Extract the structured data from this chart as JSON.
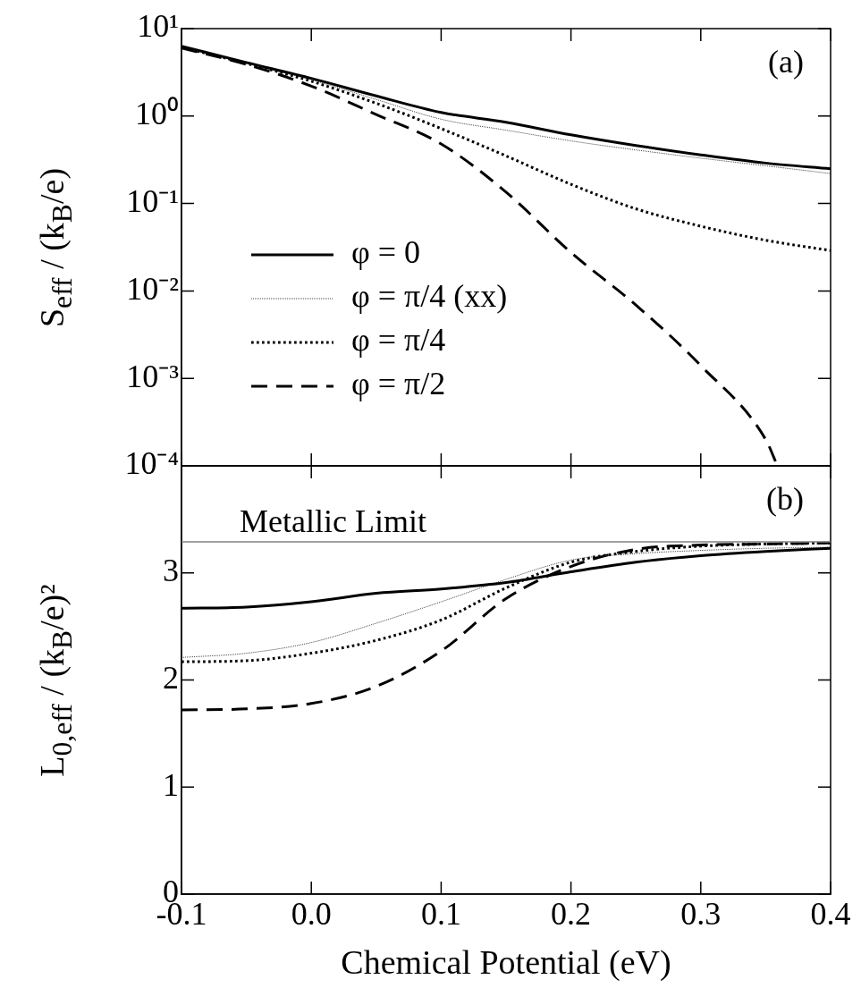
{
  "chart_data": [
    {
      "type": "line",
      "ylabel": "S$_{eff}$ / (k$_{B}$/e)",
      "log": true,
      "legend": "bottom left",
      "tick_labels": "y",
      "annotations": [
        "(a)"
      ],
      "xlim": [
        -0.1,
        0.4
      ],
      "xticks": [
        -0.1,
        0,
        0.1,
        0.2,
        0.3,
        0.4
      ],
      "ylim": [
        0.0001,
        10
      ],
      "yticks": [
        {
          "value": 10,
          "label": "10¹"
        },
        {
          "value": 1,
          "label": "10⁰"
        },
        {
          "value": 0.1,
          "label": "10⁻¹"
        },
        {
          "value": 0.01,
          "label": "10⁻²"
        },
        {
          "value": 0.001,
          "label": "10⁻³"
        },
        {
          "value": 0.0001,
          "label": "10⁻⁴"
        }
      ],
      "series": [
        {
          "name": "φ = 0",
          "color": "#000000",
          "line_style": "solid",
          "x": [
            -0.1,
            -0.05,
            0,
            0.05,
            0.1,
            0.15,
            0.2,
            0.25,
            0.3,
            0.35,
            0.4
          ],
          "values": [
            6.3,
            4.1,
            2.7,
            1.7,
            1.1,
            0.85,
            0.61,
            0.46,
            0.36,
            0.29,
            0.25
          ]
        },
        {
          "name": "φ = π/4 (xx)",
          "color": "#333333",
          "line_style": "dotted",
          "x": [
            -0.1,
            -0.05,
            0,
            0.05,
            0.1,
            0.15,
            0.2,
            0.25,
            0.3,
            0.35,
            0.4
          ],
          "values": [
            6.2,
            4.0,
            2.6,
            1.55,
            0.92,
            0.69,
            0.52,
            0.41,
            0.33,
            0.27,
            0.22
          ]
        },
        {
          "name": "φ = π/4",
          "color": "#000000",
          "line_style": "dotted",
          "x": [
            -0.1,
            -0.05,
            0,
            0.05,
            0.1,
            0.15,
            0.2,
            0.25,
            0.3,
            0.35,
            0.4
          ],
          "values": [
            6.1,
            4.0,
            2.5,
            1.4,
            0.72,
            0.35,
            0.166,
            0.087,
            0.055,
            0.038,
            0.029
          ]
        },
        {
          "name": "φ = π/2",
          "color": "#000000",
          "line_style": "dashed",
          "x": [
            -0.1,
            -0.05,
            0,
            0.05,
            0.1,
            0.15,
            0.2,
            0.25,
            0.3,
            0.35,
            0.359
          ],
          "values": [
            6.0,
            3.9,
            2.2,
            1.04,
            0.48,
            0.135,
            0.0275,
            0.0069,
            0.0014,
            0.0002,
            0.0001
          ]
        }
      ]
    },
    {
      "type": "line",
      "xlabel": "Chemical Potential (eV)",
      "ylabel": "L$_{0,eff}$ / (k$_{B}$/e)²",
      "annotations": [
        "(b)"
      ],
      "xlim": [
        -0.1,
        0.4
      ],
      "xticks": [
        -0.1,
        {
          "value": 0,
          "label": "0.0"
        },
        0.1,
        0.2,
        0.3,
        0.4
      ],
      "ylim": [
        0,
        4
      ],
      "yticks": [
        0,
        1,
        2,
        3,
        {
          "value": 4,
          "label": null
        }
      ],
      "ref_lines": [
        {
          "axis": "y",
          "value": 3.29,
          "label": "Metallic Limit",
          "color": "#808080"
        }
      ],
      "series": [
        {
          "color": "#000000",
          "line_style": "solid",
          "x": [
            -0.1,
            -0.05,
            0,
            0.05,
            0.1,
            0.15,
            0.2,
            0.25,
            0.3,
            0.35,
            0.4
          ],
          "values": [
            2.67,
            2.68,
            2.73,
            2.81,
            2.85,
            2.91,
            3.01,
            3.1,
            3.16,
            3.2,
            3.23
          ]
        },
        {
          "color": "#333333",
          "line_style": "dotted",
          "x": [
            -0.1,
            -0.05,
            0,
            0.05,
            0.1,
            0.15,
            0.2,
            0.25,
            0.3,
            0.35,
            0.4
          ],
          "values": [
            2.21,
            2.25,
            2.35,
            2.53,
            2.73,
            2.94,
            3.12,
            3.18,
            3.21,
            3.23,
            3.24
          ]
        },
        {
          "color": "#000000",
          "line_style": "dotted",
          "x": [
            -0.1,
            -0.05,
            0,
            0.05,
            0.1,
            0.15,
            0.2,
            0.25,
            0.3,
            0.35,
            0.4
          ],
          "values": [
            2.17,
            2.18,
            2.25,
            2.37,
            2.56,
            2.86,
            3.1,
            3.2,
            3.25,
            3.27,
            3.28
          ]
        },
        {
          "color": "#000000",
          "line_style": "dashed",
          "x": [
            -0.1,
            -0.05,
            0,
            0.05,
            0.1,
            0.15,
            0.2,
            0.25,
            0.3,
            0.35,
            0.4
          ],
          "values": [
            1.72,
            1.73,
            1.78,
            1.94,
            2.27,
            2.76,
            3.06,
            3.22,
            3.26,
            3.27,
            3.28
          ]
        }
      ]
    }
  ]
}
